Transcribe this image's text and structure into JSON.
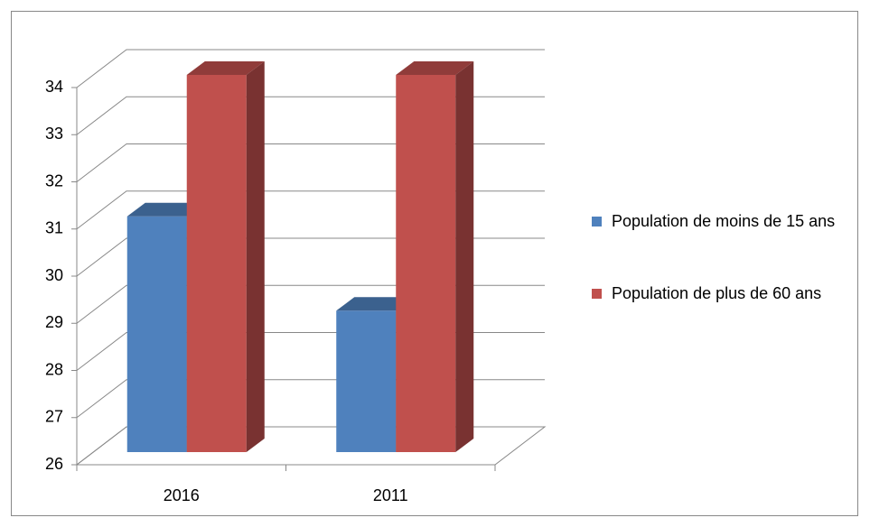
{
  "chart_data": {
    "type": "bar3d",
    "categories": [
      "2016",
      "2011"
    ],
    "series": [
      {
        "name": "Population de moins de 15 ans",
        "color": "#4f81bd",
        "values": [
          31,
          29
        ]
      },
      {
        "name": "Population de plus de 60 ans",
        "color": "#c0504d",
        "values": [
          34,
          34
        ]
      }
    ],
    "ylim": [
      26,
      34
    ],
    "yticks": [
      26,
      27,
      28,
      29,
      30,
      31,
      32,
      33,
      34
    ],
    "grid": true,
    "legend": "right"
  }
}
